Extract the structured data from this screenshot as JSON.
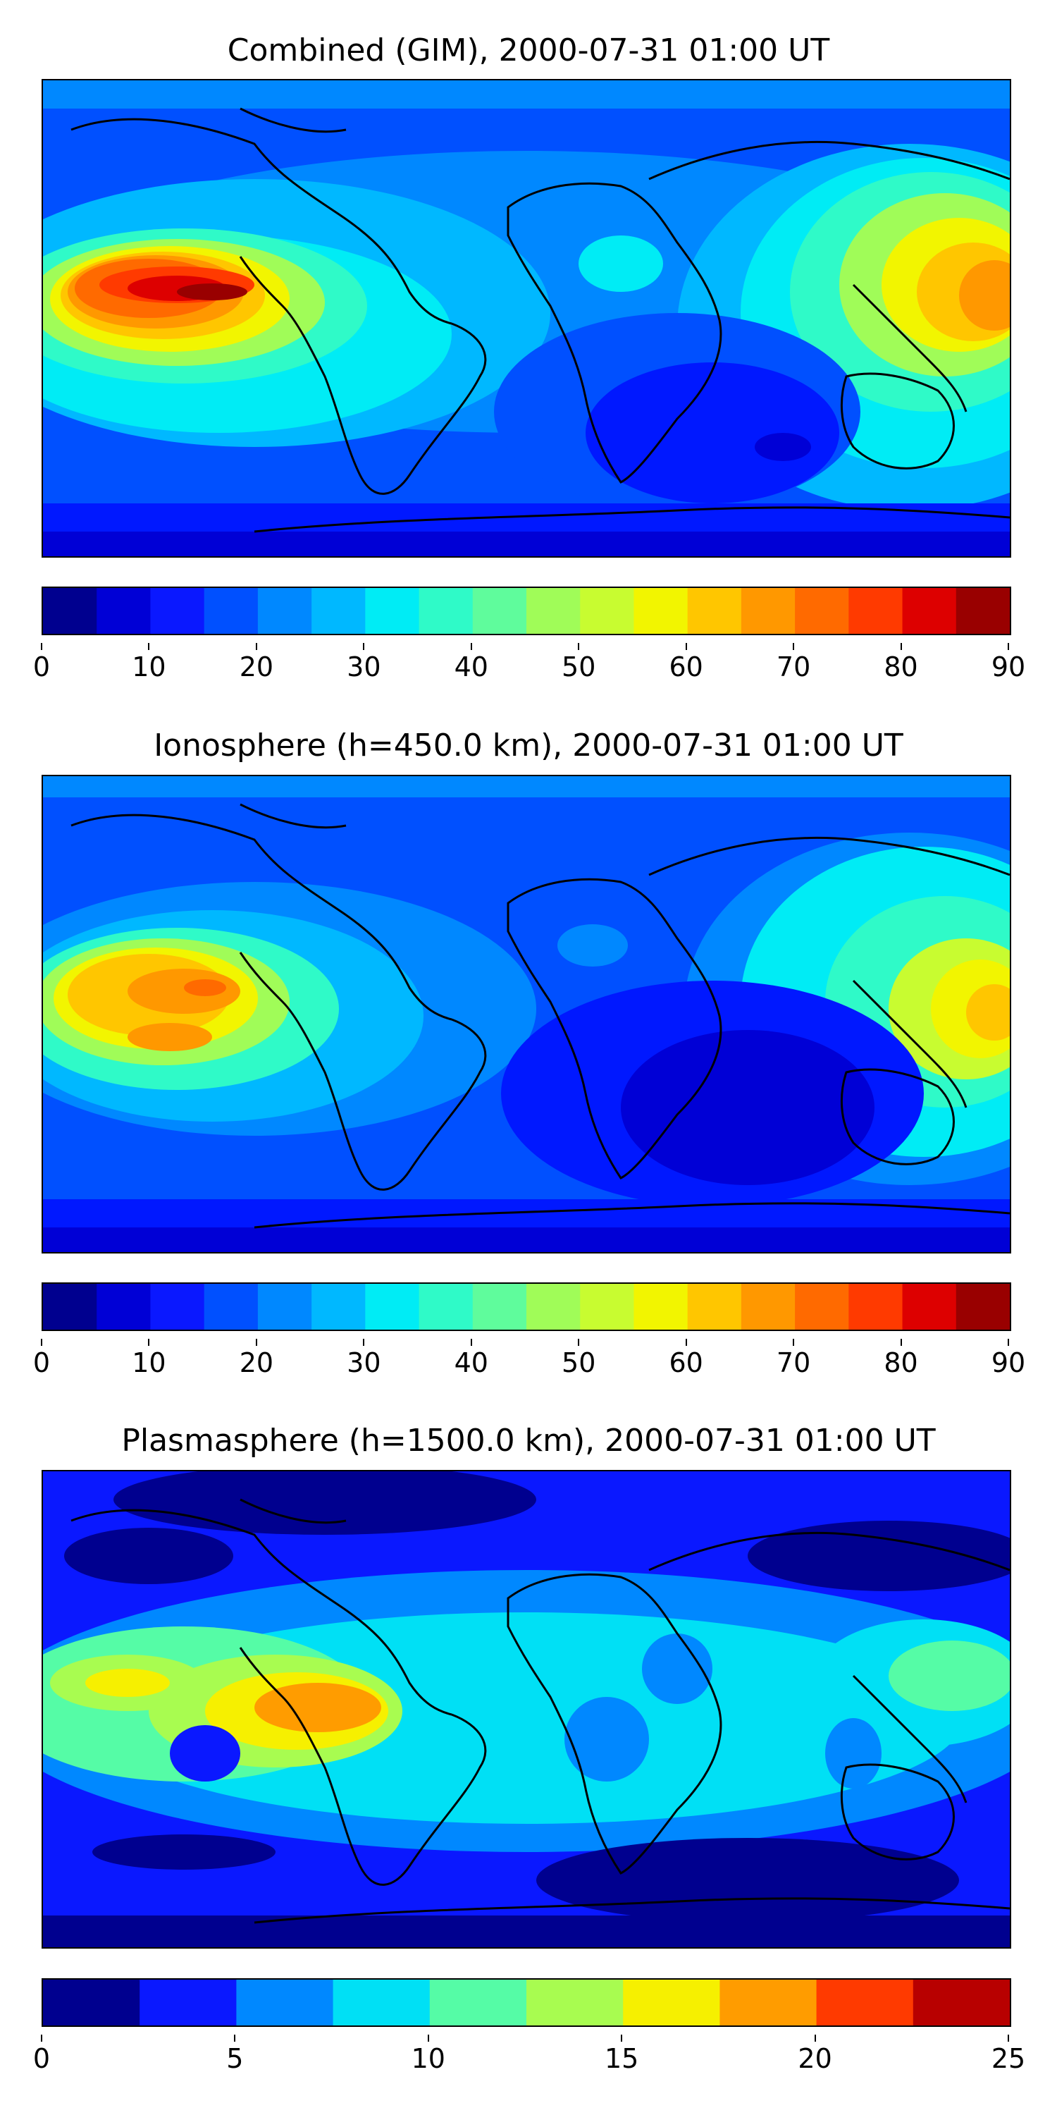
{
  "panels": [
    {
      "title": "Combined (GIM), 2000-07-31 01:00 UT",
      "colorbar": {
        "min": 0,
        "max": 90,
        "step": 5,
        "ticks": [
          "0",
          "10",
          "20",
          "30",
          "40",
          "50",
          "60",
          "70",
          "80",
          "90"
        ],
        "colors": [
          "#00008f",
          "#0000d6",
          "#0a18ff",
          "#0050ff",
          "#0088ff",
          "#00b8ff",
          "#00ecf5",
          "#2ffac8",
          "#5ffc9c",
          "#a0fc58",
          "#c8fc30",
          "#f2f500",
          "#ffc600",
          "#ff9800",
          "#ff6a00",
          "#ff3a00",
          "#dd0000",
          "#990000"
        ]
      }
    },
    {
      "title": "Ionosphere  (h=450.0 km), 2000-07-31 01:00 UT",
      "colorbar": {
        "min": 0,
        "max": 90,
        "step": 5,
        "ticks": [
          "0",
          "10",
          "20",
          "30",
          "40",
          "50",
          "60",
          "70",
          "80",
          "90"
        ],
        "colors": [
          "#00008f",
          "#0000d6",
          "#0a18ff",
          "#0050ff",
          "#0088ff",
          "#00b8ff",
          "#00ecf5",
          "#2ffac8",
          "#5ffc9c",
          "#a0fc58",
          "#c8fc30",
          "#f2f500",
          "#ffc600",
          "#ff9800",
          "#ff6a00",
          "#ff3a00",
          "#dd0000",
          "#990000"
        ]
      }
    },
    {
      "title": "Plasmasphere (h=1500.0 km), 2000-07-31 01:00 UT",
      "colorbar": {
        "min": 0,
        "max": 25,
        "step": 2.5,
        "ticks": [
          "0",
          "5",
          "10",
          "15",
          "20",
          "25"
        ],
        "colors": [
          "#00008f",
          "#0a18ff",
          "#0088ff",
          "#00e0f5",
          "#55fca6",
          "#a8fc50",
          "#f6f000",
          "#ff9c00",
          "#ff3a00",
          "#b80000"
        ]
      }
    }
  ]
}
